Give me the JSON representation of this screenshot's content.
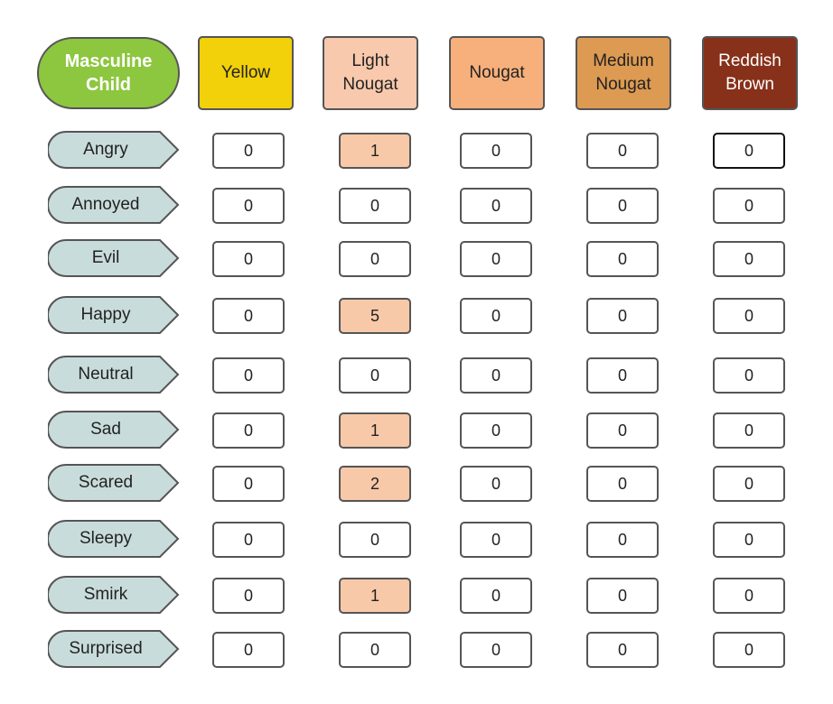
{
  "title": "Masculine\nChild",
  "columns": [
    {
      "label": "Yellow",
      "bg": "#f2d00a",
      "color": "#222222"
    },
    {
      "label": "Light\nNougat",
      "bg": "#f9c9ad",
      "color": "#222222"
    },
    {
      "label": "Nougat",
      "bg": "#f7b07c",
      "color": "#222222"
    },
    {
      "label": "Medium\nNougat",
      "bg": "#dd9a52",
      "color": "#222222"
    },
    {
      "label": "Reddish\nBrown",
      "bg": "#87311a",
      "color": "#ffffff"
    }
  ],
  "rows": [
    {
      "label": "Angry",
      "values": [
        "0",
        "1",
        "0",
        "0",
        "0"
      ]
    },
    {
      "label": "Annoyed",
      "values": [
        "0",
        "0",
        "0",
        "0",
        "0"
      ]
    },
    {
      "label": "Evil",
      "values": [
        "0",
        "0",
        "0",
        "0",
        "0"
      ]
    },
    {
      "label": "Happy",
      "values": [
        "0",
        "5",
        "0",
        "0",
        "0"
      ]
    },
    {
      "label": "Neutral",
      "values": [
        "0",
        "0",
        "0",
        "0",
        "0"
      ]
    },
    {
      "label": "Sad",
      "values": [
        "0",
        "1",
        "0",
        "0",
        "0"
      ]
    },
    {
      "label": "Scared",
      "values": [
        "0",
        "2",
        "0",
        "0",
        "0"
      ]
    },
    {
      "label": "Sleepy",
      "values": [
        "0",
        "0",
        "0",
        "0",
        "0"
      ]
    },
    {
      "label": "Smirk",
      "values": [
        "0",
        "1",
        "0",
        "0",
        "0"
      ]
    },
    {
      "label": "Surprised",
      "values": [
        "0",
        "0",
        "0",
        "0",
        "0"
      ]
    }
  ],
  "colors": {
    "title_bg": "#8dc63f",
    "label_fill": "#c9dcdc",
    "highlight_fill": "#f8c9a8"
  }
}
